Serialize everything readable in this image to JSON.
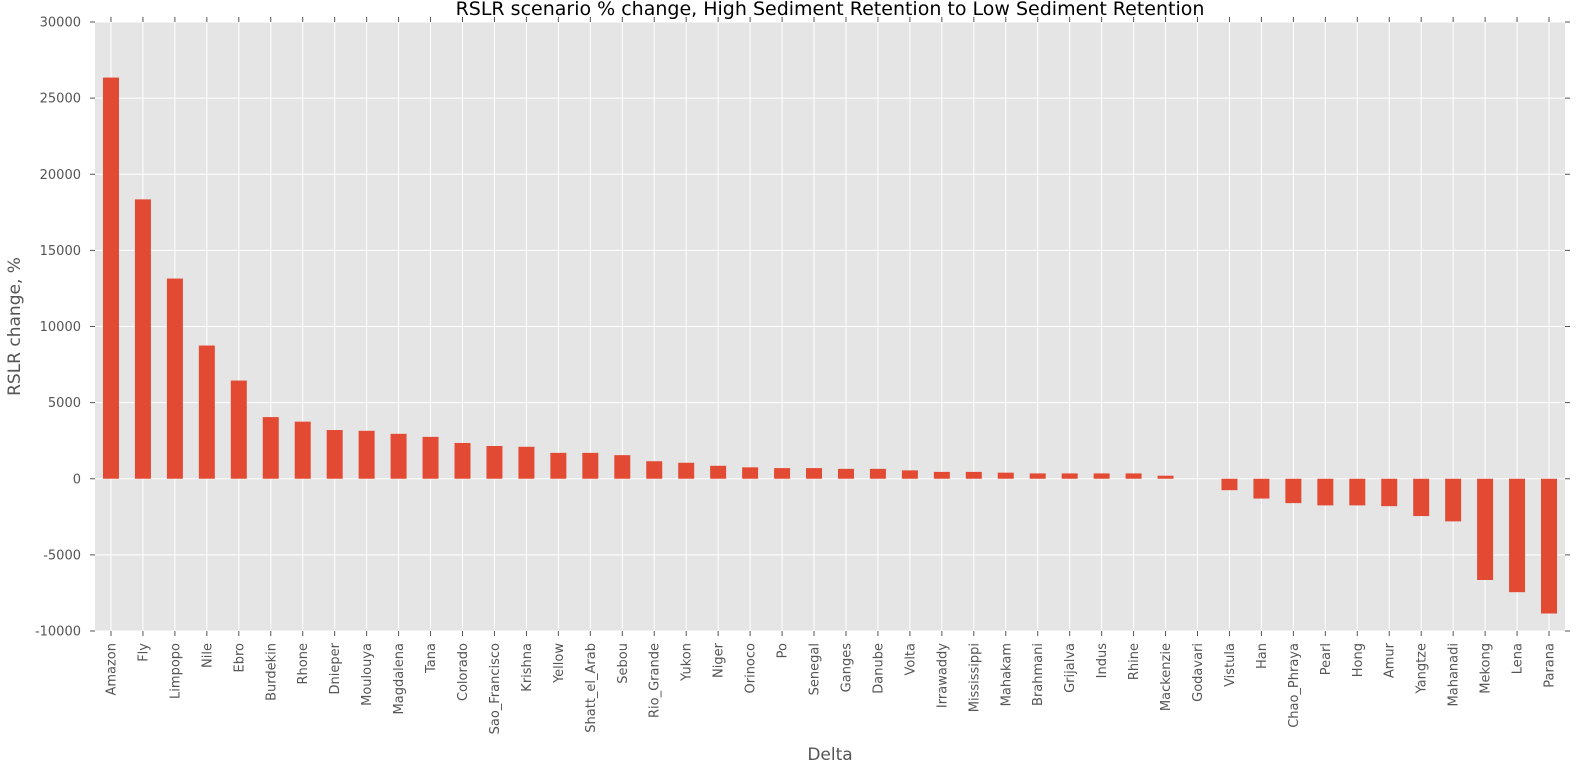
{
  "chart_data": {
    "type": "bar",
    "title": "RSLR scenario % change, High Sediment Retention to Low Sediment Retention",
    "xlabel": "Delta",
    "ylabel": "RSLR change, %",
    "ylim": [
      -10000,
      30000
    ],
    "yticks": [
      -10000,
      -5000,
      0,
      5000,
      10000,
      15000,
      20000,
      25000,
      30000
    ],
    "grid": true,
    "bar_color": "#E24A33",
    "background_color": "#E5E5E5",
    "grid_color": "#FFFFFF",
    "categories": [
      "Amazon",
      "Fly",
      "Limpopo",
      "Nile",
      "Ebro",
      "Burdekin",
      "Rhone",
      "Dnieper",
      "Moulouya",
      "Magdalena",
      "Tana",
      "Colorado",
      "Sao_Francisco",
      "Krishna",
      "Yellow",
      "Shatt_el_Arab",
      "Sebou",
      "Rio_Grande",
      "Yukon",
      "Niger",
      "Orinoco",
      "Po",
      "Senegal",
      "Ganges",
      "Danube",
      "Volta",
      "Irrawaddy",
      "Mississippi",
      "Mahakam",
      "Brahmani",
      "Grijalva",
      "Indus",
      "Rhine",
      "Mackenzie",
      "Godavari",
      "Vistula",
      "Han",
      "Chao_Phraya",
      "Pearl",
      "Hong",
      "Amur",
      "Yangtze",
      "Mahanadi",
      "Mekong",
      "Lena",
      "Parana"
    ],
    "values": [
      26350,
      18350,
      13150,
      8750,
      6450,
      4050,
      3750,
      3200,
      3150,
      2950,
      2750,
      2350,
      2150,
      2100,
      1700,
      1700,
      1550,
      1150,
      1050,
      850,
      750,
      700,
      700,
      650,
      650,
      550,
      450,
      450,
      400,
      350,
      350,
      350,
      350,
      200,
      0,
      -750,
      -1300,
      -1600,
      -1750,
      -1750,
      -1800,
      -2450,
      -2800,
      -6650,
      -7450,
      -8850
    ]
  }
}
